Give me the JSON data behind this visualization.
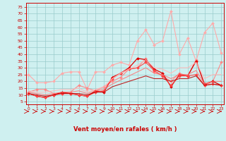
{
  "xlabel": "Vent moyen/en rafales ( km/h )",
  "ylabel_ticks": [
    5,
    10,
    15,
    20,
    25,
    30,
    35,
    40,
    45,
    50,
    55,
    60,
    65,
    70,
    75
  ],
  "xticks": [
    0,
    1,
    2,
    3,
    4,
    5,
    6,
    7,
    8,
    9,
    10,
    11,
    12,
    13,
    14,
    15,
    16,
    17,
    18,
    19,
    20,
    21,
    22,
    23
  ],
  "xlim": [
    -0.3,
    23.3
  ],
  "ylim": [
    3,
    78
  ],
  "bg_color": "#cff0f0",
  "grid_color": "#99cccc",
  "lines": [
    {
      "color": "#ffaaaa",
      "alpha": 1.0,
      "linewidth": 0.8,
      "marker": "D",
      "markersize": 2.0,
      "y": [
        25,
        19,
        19,
        20,
        26,
        27,
        27,
        14,
        27,
        27,
        32,
        34,
        32,
        50,
        58,
        47,
        50,
        72,
        40,
        52,
        35,
        56,
        63,
        41
      ]
    },
    {
      "color": "#ff8888",
      "alpha": 1.0,
      "linewidth": 0.8,
      "marker": "D",
      "markersize": 2.0,
      "y": [
        12,
        14,
        14,
        11,
        11,
        12,
        17,
        15,
        13,
        16,
        20,
        23,
        29,
        30,
        37,
        27,
        24,
        20,
        26,
        24,
        36,
        17,
        20,
        34
      ]
    },
    {
      "color": "#dd0000",
      "alpha": 1.0,
      "linewidth": 0.9,
      "marker": "D",
      "markersize": 2.0,
      "y": [
        11,
        9,
        8,
        10,
        12,
        11,
        10,
        9,
        13,
        12,
        23,
        26,
        30,
        37,
        36,
        29,
        26,
        16,
        25,
        24,
        35,
        18,
        20,
        17
      ]
    },
    {
      "color": "#ff4444",
      "alpha": 1.0,
      "linewidth": 0.8,
      "marker": "D",
      "markersize": 2.0,
      "y": [
        11,
        9,
        8,
        10,
        11,
        11,
        10,
        9,
        12,
        13,
        22,
        26,
        29,
        30,
        34,
        28,
        24,
        17,
        24,
        24,
        25,
        17,
        18,
        17
      ]
    },
    {
      "color": "#bb0000",
      "alpha": 0.85,
      "linewidth": 0.8,
      "marker": null,
      "markersize": 0,
      "y": [
        11,
        10,
        9,
        10,
        11,
        11,
        11,
        10,
        12,
        12,
        16,
        18,
        20,
        22,
        24,
        22,
        22,
        20,
        22,
        22,
        24,
        17,
        18,
        17
      ]
    },
    {
      "color": "#ff7777",
      "alpha": 0.85,
      "linewidth": 0.8,
      "marker": null,
      "markersize": 0,
      "y": [
        12,
        11,
        10,
        11,
        12,
        12,
        13,
        11,
        13,
        14,
        18,
        21,
        24,
        27,
        30,
        26,
        25,
        22,
        25,
        25,
        28,
        18,
        20,
        20
      ]
    },
    {
      "color": "#ffbbbb",
      "alpha": 0.85,
      "linewidth": 0.9,
      "marker": null,
      "markersize": 0,
      "y": [
        13,
        12,
        12,
        13,
        14,
        14,
        15,
        12,
        14,
        16,
        22,
        26,
        29,
        32,
        36,
        30,
        29,
        26,
        30,
        30,
        34,
        22,
        25,
        25
      ]
    }
  ],
  "arrow_color": "#cc0000",
  "xlabel_color": "#cc0000",
  "tick_color": "#cc0000",
  "spine_color": "#cc0000"
}
